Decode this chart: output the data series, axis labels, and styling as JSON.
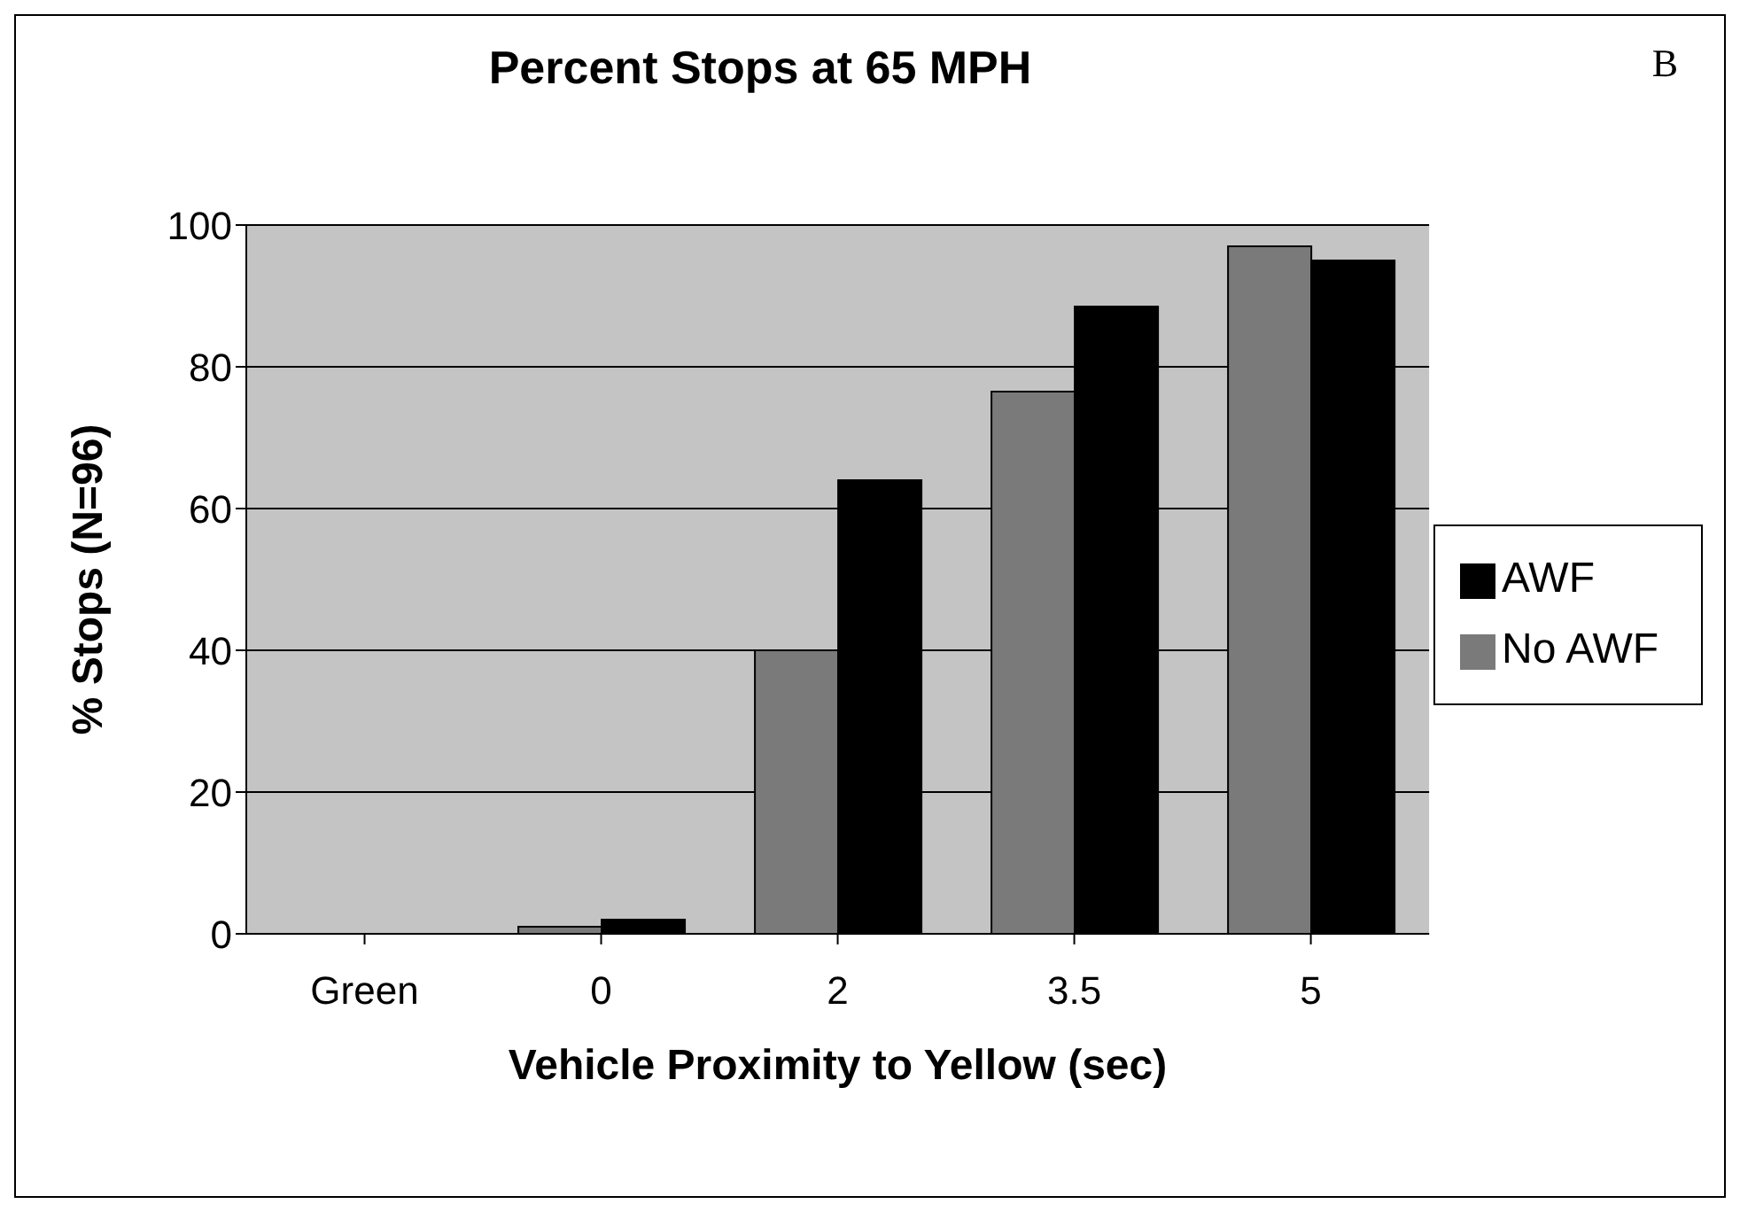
{
  "chart_data": {
    "type": "bar",
    "title": "Percent Stops at 65 MPH",
    "annotations": [
      "B"
    ],
    "xlabel": "Vehicle Proximity to Yellow (sec)",
    "ylabel": "% Stops (N=96)",
    "categories": [
      "Green",
      "0",
      "2",
      "3.5",
      "5"
    ],
    "series": [
      {
        "name": "No AWF",
        "color": "#7a7a7a",
        "values": [
          0,
          1,
          40,
          76.5,
          97
        ]
      },
      {
        "name": "AWF",
        "color": "#000000",
        "values": [
          0,
          2,
          64,
          88.5,
          95
        ]
      }
    ],
    "ylim": [
      0,
      100
    ],
    "yticks": [
      0,
      20,
      40,
      60,
      80,
      100
    ],
    "grid": "y",
    "legend": "right"
  }
}
